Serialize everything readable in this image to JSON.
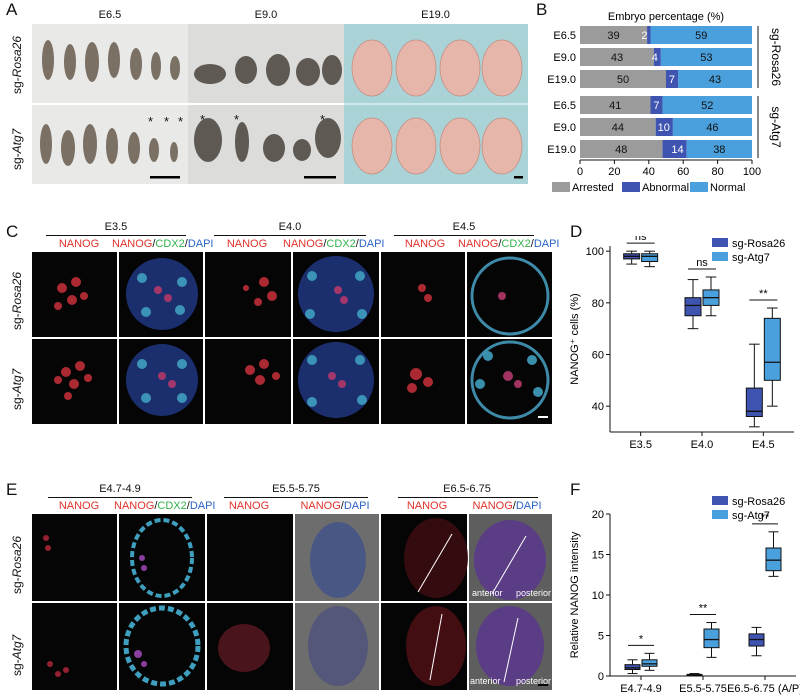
{
  "panels": {
    "A": {
      "label": "A",
      "stages": [
        "E6.5",
        "E9.0",
        "E19.0"
      ],
      "rows": [
        "sg-Rosa26",
        "sg-Atg7"
      ],
      "row_prefix": "sg-",
      "row_names": [
        "Rosa26",
        "Atg7"
      ],
      "asterisk": "*"
    },
    "B": {
      "label": "B"
    },
    "C": {
      "label": "C",
      "stages": [
        "E3.5",
        "E4.0",
        "E4.5"
      ],
      "channel_a": "NANOG",
      "channel_b_1": "NANOG",
      "channel_b_2": "CDX2",
      "channel_b_3": "DAPI",
      "sep": "/"
    },
    "D": {
      "label": "D"
    },
    "E": {
      "label": "E",
      "stages": [
        "E4.7-4.9",
        "E5.5-5.75",
        "E6.5-6.75"
      ],
      "channel_a": "NANOG",
      "channel_b_1": "NANOG",
      "channel_b_2": "CDX2",
      "channel_b_3": "DAPI",
      "sep": "/",
      "anterior": "anterior",
      "posterior": "posterior"
    },
    "F": {
      "label": "F"
    }
  },
  "chart_data": [
    {
      "type": "bar",
      "orientation": "horizontal-stacked",
      "title": "Embryo percentage (%)",
      "groups": [
        "sg-Rosa26",
        "sg-Atg7"
      ],
      "categories": [
        "E6.5",
        "E9.0",
        "E19.0",
        "E6.5",
        "E9.0",
        "E19.0"
      ],
      "series": [
        {
          "name": "Arrested",
          "values": [
            39,
            43,
            50,
            41,
            44,
            48
          ],
          "color": "#9b9b9b"
        },
        {
          "name": "Abnormal",
          "values": [
            2,
            4,
            7,
            7,
            10,
            14
          ],
          "color": "#3f53b0"
        },
        {
          "name": "Normal",
          "values": [
            59,
            53,
            43,
            52,
            46,
            38
          ],
          "color": "#4aa0dc"
        }
      ],
      "labels": [
        "39",
        "2",
        "59",
        "43",
        "4",
        "53",
        "50",
        "7",
        "43",
        "41",
        "7",
        "52",
        "44",
        "10",
        "46",
        "48",
        "14",
        "38"
      ],
      "xticks": [
        "0",
        "20",
        "40",
        "60",
        "80",
        "100"
      ],
      "xlim": [
        0,
        100
      ]
    },
    {
      "type": "box",
      "ylabel": "NANOG⁺ cells (%)",
      "categories": [
        "E3.5",
        "E4.0",
        "E4.5"
      ],
      "legend": [
        "sg-Rosa26",
        "sg-Atg7"
      ],
      "yticks": [
        "40",
        "60",
        "80",
        "100"
      ],
      "ylim": [
        30,
        102
      ],
      "series": [
        {
          "name": "sg-Rosa26",
          "color": "#3f53b0",
          "boxes": [
            {
              "min": 95,
              "q1": 97,
              "median": 98,
              "q3": 99,
              "max": 100
            },
            {
              "min": 70,
              "q1": 75,
              "median": 79,
              "q3": 82,
              "max": 89
            },
            {
              "min": 32,
              "q1": 36,
              "median": 38,
              "q3": 47,
              "max": 64
            }
          ]
        },
        {
          "name": "sg-Atg7",
          "color": "#4aa0dc",
          "boxes": [
            {
              "min": 94,
              "q1": 96,
              "median": 98,
              "q3": 99,
              "max": 100
            },
            {
              "min": 75,
              "q1": 79,
              "median": 82,
              "q3": 85,
              "max": 90
            },
            {
              "min": 40,
              "q1": 50,
              "median": 57,
              "q3": 74,
              "max": 78
            }
          ]
        }
      ],
      "significance": [
        "ns",
        "ns",
        "**"
      ]
    },
    {
      "type": "box",
      "ylabel": "Relative NANOG intensity",
      "categories": [
        "E4.7-4.9",
        "E5.5-5.75",
        "E6.5-6.75 (A/P)"
      ],
      "legend": [
        "sg-Rosa26",
        "sg-Atg7"
      ],
      "yticks": [
        "0",
        "5",
        "10",
        "15",
        "20"
      ],
      "ylim": [
        0,
        20
      ],
      "series": [
        {
          "name": "sg-Rosa26",
          "color": "#3f53b0",
          "boxes": [
            {
              "min": 0.3,
              "q1": 0.8,
              "median": 1.0,
              "q3": 1.4,
              "max": 2.0
            },
            {
              "min": 0.05,
              "q1": 0.1,
              "median": 0.15,
              "q3": 0.2,
              "max": 0.3
            },
            {
              "min": 2.5,
              "q1": 3.7,
              "median": 4.5,
              "q3": 5.2,
              "max": 6.0
            }
          ]
        },
        {
          "name": "sg-Atg7",
          "color": "#4aa0dc",
          "boxes": [
            {
              "min": 0.7,
              "q1": 1.2,
              "median": 1.5,
              "q3": 2.0,
              "max": 2.8
            },
            {
              "min": 2.3,
              "q1": 3.5,
              "median": 4.5,
              "q3": 5.8,
              "max": 6.6
            },
            {
              "min": 12.3,
              "q1": 13.0,
              "median": 14.3,
              "q3": 15.8,
              "max": 17.8
            }
          ]
        }
      ],
      "significance": [
        "*",
        "**",
        "**"
      ]
    }
  ]
}
